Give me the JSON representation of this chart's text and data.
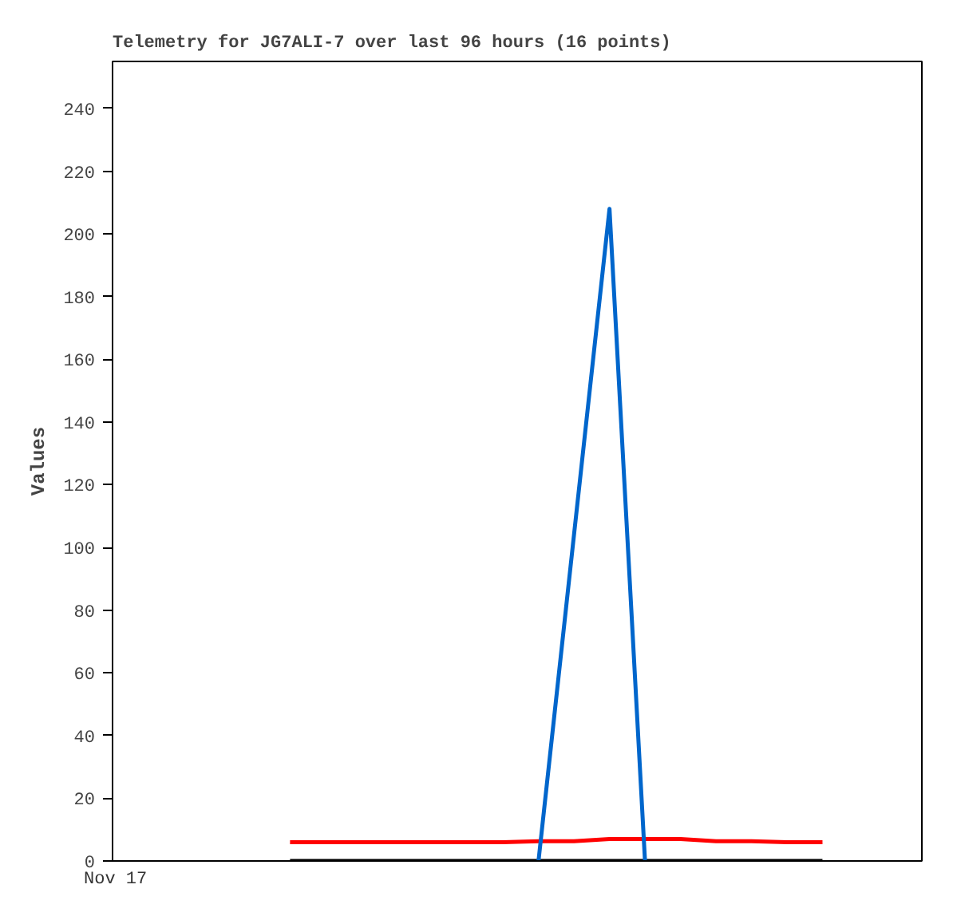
{
  "chart_data": {
    "type": "line",
    "title": "Telemetry for JG7ALI-7 over last 96 hours (16 points)",
    "ylabel": "Values",
    "annotations": [
      "Nov 17"
    ],
    "categories": [
      null,
      null,
      null,
      null,
      null,
      null,
      null,
      null,
      null,
      null,
      null,
      null,
      null,
      null,
      null,
      null
    ],
    "ylim": [
      0,
      255
    ],
    "yticks": [
      0,
      20,
      40,
      60,
      80,
      100,
      120,
      140,
      160,
      180,
      200,
      220,
      240
    ],
    "grid": false,
    "marker": "none",
    "line_style": "solid",
    "series": [
      {
        "color": "#ff0000",
        "values": [
          6,
          6,
          6,
          6,
          6,
          6,
          6,
          6.3,
          6.3,
          7,
          7,
          7,
          6.3,
          6.3,
          6,
          6
        ]
      },
      {
        "color": "#000000",
        "values": [
          0,
          0,
          0,
          0,
          0,
          0,
          0,
          0,
          0,
          0,
          0,
          0,
          0,
          0,
          0,
          0
        ]
      },
      {
        "color": "#0066cc",
        "values": [
          null,
          null,
          null,
          null,
          null,
          null,
          null,
          0,
          104,
          208,
          0,
          null,
          null,
          null,
          null,
          null
        ]
      }
    ]
  }
}
